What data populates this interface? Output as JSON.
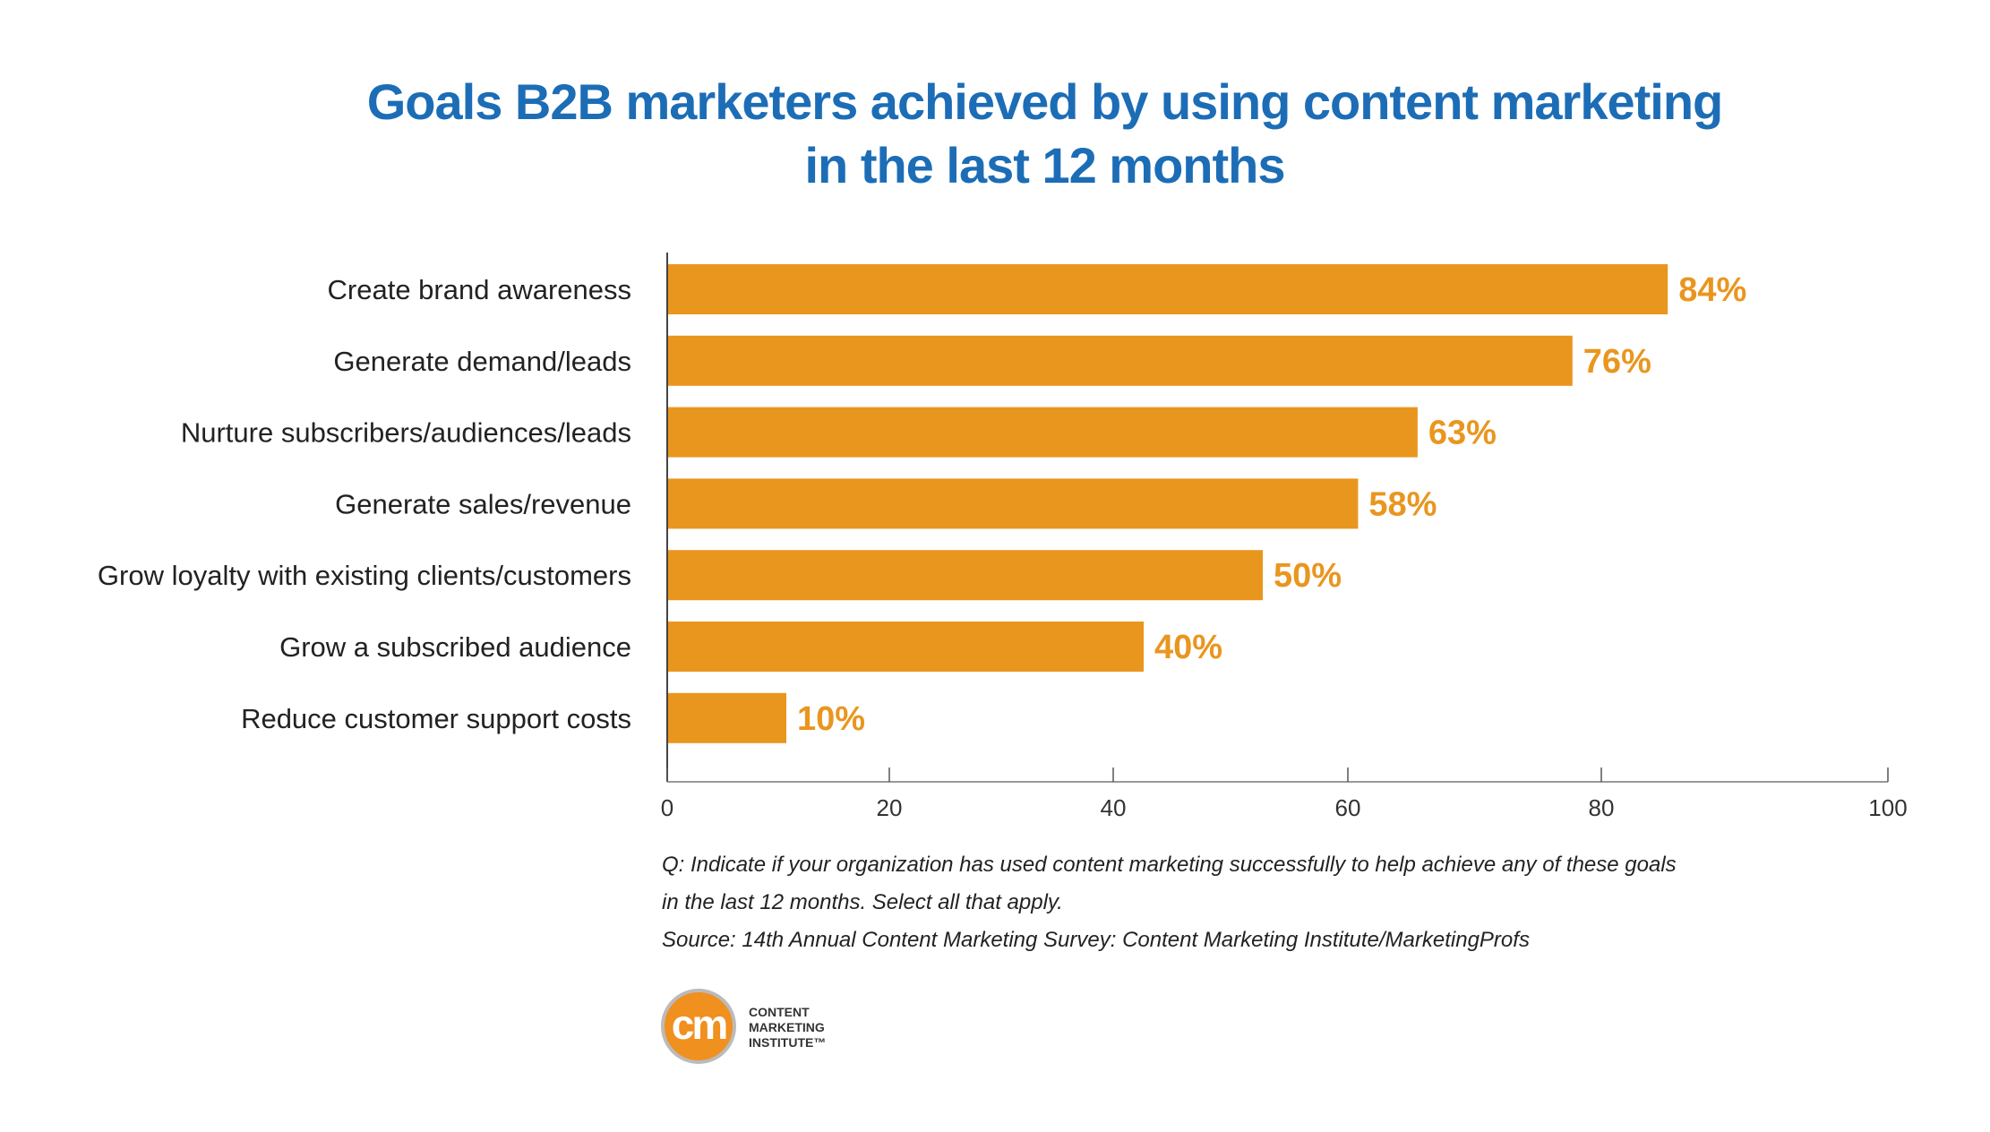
{
  "chart_data": {
    "type": "bar",
    "orientation": "horizontal",
    "title": "Goals B2B marketers achieved by using content marketing in the last 12 months",
    "title_lines": [
      "Goals B2B marketers achieved by using content marketing",
      "in the last 12 months"
    ],
    "categories": [
      "Create brand awareness",
      "Generate demand/leads",
      "Nurture subscribers/audiences/leads",
      "Generate sales/revenue",
      "Grow loyalty with existing clients/customers",
      "Grow a subscribed audience",
      "Reduce customer support costs"
    ],
    "values": [
      84,
      76,
      63,
      58,
      50,
      40,
      10
    ],
    "data_labels": [
      "84%",
      "76%",
      "63%",
      "58%",
      "50%",
      "40%",
      "10%"
    ],
    "xlim": [
      0,
      100
    ],
    "x_ticks": [
      "0",
      "20",
      "40",
      "60",
      "80",
      "100"
    ],
    "grid": false,
    "colors": {
      "bar": "#e9961f",
      "label": "#e9961f",
      "title": "#1c6db6"
    }
  },
  "notes": [
    "Q: Indicate if your organization has used content marketing successfully to help achieve any of these goals",
    "in the last 12 months. Select all that apply.",
    "Source: 14th Annual Content Marketing Survey: Content Marketing Institute/MarketingProfs"
  ],
  "logo": {
    "mark": "cm",
    "text": [
      "CONTENT",
      "MARKETING",
      "INSTITUTE™"
    ]
  }
}
